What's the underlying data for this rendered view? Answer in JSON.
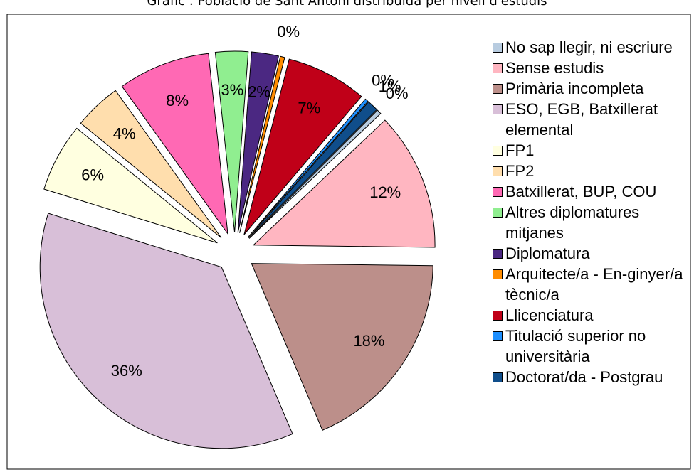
{
  "chart_data": {
    "type": "pie",
    "title": "Gràfic : Població de Sant Antoni distribuïda per nivell d'estudis",
    "categories": [
      "No sap llegir, ni escriure",
      "Sense estudis",
      "Primària incompleta",
      "ESO, EGB, Batxillerat elemental",
      "FP1",
      "FP2",
      "Batxillerat, BUP, COU",
      "Altres diplomatures mitjanes",
      "Diplomatura",
      "Arquitecte/a - En-ginyer/a tècnic/a",
      "Llicenciatura",
      "Titulació superior no universitària",
      "Doctorat/da - Postgrau"
    ],
    "values": [
      0.4,
      12.3,
      18.4,
      36.2,
      6.1,
      4.2,
      8.2,
      2.9,
      2.4,
      0.4,
      7.2,
      0.3,
      1.0
    ],
    "value_labels": [
      "0%",
      "12%",
      "18%",
      "36%",
      "6%",
      "4%",
      "8%",
      "3%",
      "2%",
      "0%",
      "7%",
      "0%",
      "1%"
    ],
    "colors": [
      "#b8cce0",
      "#ffb6c1",
      "#bc8f8a",
      "#d8bfd8",
      "#ffffe0",
      "#ffdead",
      "#ff69b4",
      "#90ee90",
      "#4b2882",
      "#ff8c00",
      "#c00018",
      "#1e90ff",
      "#104e8b"
    ],
    "legend": "right"
  }
}
